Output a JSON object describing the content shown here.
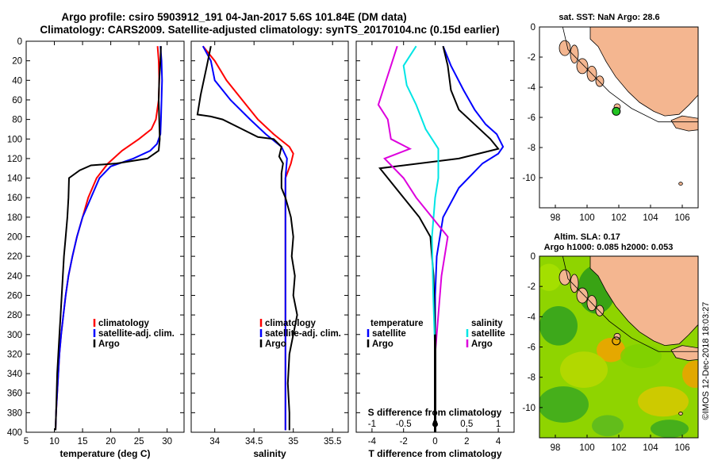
{
  "colors": {
    "climatology": "#ff0000",
    "satellite": "#0000ff",
    "argo": "#000000",
    "sal_satellite": "#00e5e5",
    "sal_argo": "#dd00dd",
    "land": "#f4b690",
    "sea": "#ffffff"
  },
  "header": {
    "line1": "Argo profile: csiro 5903912_191 04-Jan-2017 5.6S 101.84E (DM data)",
    "line2": "Climatology: CARS2009. Satellite-adjusted climatology: synTS_20170104.nc (0.15d earlier)"
  },
  "watermark": "©IMOS 12-Dec-2018 18:03:27",
  "chart_data": [
    {
      "type": "line",
      "id": "temperature",
      "xlabel": "temperature (deg C)",
      "ylabel": "",
      "xlim": [
        5,
        33
      ],
      "ylim": [
        400,
        0
      ],
      "xticks": [
        "5",
        "10",
        "15",
        "20",
        "25",
        "30"
      ],
      "xtick_values": [
        5,
        10,
        15,
        20,
        25,
        30
      ],
      "yticks": [
        "0",
        "20",
        "40",
        "60",
        "80",
        "100",
        "120",
        "140",
        "160",
        "180",
        "200",
        "220",
        "240",
        "260",
        "280",
        "300",
        "320",
        "340",
        "360",
        "380",
        "400"
      ],
      "legend": [
        "climatology",
        "satellite-adj. clim.",
        "Argo"
      ],
      "series": [
        {
          "name": "climatology",
          "color": "#ff0000",
          "points": [
            [
              28.3,
              5
            ],
            [
              28.5,
              20
            ],
            [
              28.6,
              40
            ],
            [
              28.5,
              60
            ],
            [
              28.0,
              80
            ],
            [
              27.2,
              90
            ],
            [
              25.0,
              100
            ],
            [
              22.0,
              112
            ],
            [
              19.5,
              125
            ],
            [
              17.5,
              140
            ],
            [
              16.0,
              160
            ],
            [
              15.0,
              180
            ],
            [
              14.0,
              200
            ],
            [
              13.2,
              220
            ],
            [
              12.5,
              240
            ],
            [
              12.0,
              260
            ],
            [
              11.6,
              280
            ],
            [
              11.2,
              300
            ],
            [
              10.9,
              320
            ],
            [
              10.7,
              340
            ],
            [
              10.5,
              360
            ],
            [
              10.3,
              380
            ],
            [
              10.2,
              398
            ]
          ]
        },
        {
          "name": "satellite-adj. clim.",
          "color": "#0000ff",
          "points": [
            [
              28.8,
              5
            ],
            [
              29.0,
              20
            ],
            [
              29.1,
              40
            ],
            [
              29.0,
              60
            ],
            [
              28.9,
              80
            ],
            [
              28.8,
              95
            ],
            [
              28.2,
              105
            ],
            [
              27.0,
              112
            ],
            [
              24.0,
              120
            ],
            [
              20.0,
              128
            ],
            [
              18.0,
              140
            ],
            [
              16.5,
              160
            ],
            [
              15.0,
              180
            ],
            [
              14.0,
              200
            ],
            [
              13.2,
              220
            ],
            [
              12.5,
              240
            ],
            [
              12.0,
              260
            ],
            [
              11.6,
              280
            ],
            [
              11.2,
              300
            ],
            [
              10.9,
              320
            ],
            [
              10.7,
              340
            ],
            [
              10.5,
              360
            ],
            [
              10.3,
              380
            ],
            [
              10.2,
              398
            ]
          ]
        },
        {
          "name": "Argo",
          "color": "#000000",
          "points": [
            [
              28.9,
              5
            ],
            [
              28.8,
              20
            ],
            [
              28.6,
              40
            ],
            [
              28.5,
              60
            ],
            [
              28.6,
              80
            ],
            [
              28.7,
              100
            ],
            [
              28.5,
              112
            ],
            [
              26.5,
              120
            ],
            [
              21.0,
              125
            ],
            [
              16.5,
              127
            ],
            [
              14.5,
              132
            ],
            [
              12.6,
              140
            ],
            [
              12.5,
              160
            ],
            [
              12.3,
              180
            ],
            [
              12.0,
              200
            ],
            [
              11.7,
              220
            ],
            [
              11.5,
              240
            ],
            [
              11.3,
              260
            ],
            [
              11.1,
              280
            ],
            [
              10.9,
              300
            ],
            [
              10.7,
              320
            ],
            [
              10.5,
              340
            ],
            [
              10.4,
              360
            ],
            [
              10.3,
              380
            ],
            [
              10.2,
              398
            ]
          ]
        }
      ]
    },
    {
      "type": "line",
      "id": "salinity",
      "xlabel": "salinity",
      "xlim": [
        33.7,
        35.7
      ],
      "ylim": [
        400,
        0
      ],
      "xticks": [
        "34",
        "34.5",
        "35",
        "35.5"
      ],
      "xtick_values": [
        34,
        34.5,
        35,
        35.5
      ],
      "legend": [
        "climatology",
        "satellite-adj. clim.",
        "Argo"
      ],
      "series": [
        {
          "name": "climatology",
          "color": "#ff0000",
          "points": [
            [
              33.85,
              5
            ],
            [
              34.0,
              20
            ],
            [
              34.15,
              40
            ],
            [
              34.35,
              60
            ],
            [
              34.55,
              80
            ],
            [
              34.75,
              95
            ],
            [
              34.95,
              108
            ],
            [
              35.0,
              115
            ],
            [
              34.97,
              125
            ],
            [
              34.9,
              140
            ],
            [
              34.9,
              160
            ],
            [
              34.9,
              200
            ],
            [
              34.9,
              250
            ],
            [
              34.9,
              300
            ],
            [
              34.9,
              350
            ],
            [
              34.9,
              398
            ]
          ]
        },
        {
          "name": "satellite-adj. clim.",
          "color": "#0000ff",
          "points": [
            [
              33.85,
              5
            ],
            [
              33.95,
              20
            ],
            [
              34.0,
              40
            ],
            [
              34.2,
              60
            ],
            [
              34.45,
              80
            ],
            [
              34.65,
              95
            ],
            [
              34.85,
              108
            ],
            [
              34.92,
              120
            ],
            [
              34.9,
              140
            ],
            [
              34.9,
              160
            ],
            [
              34.9,
              200
            ],
            [
              34.9,
              250
            ],
            [
              34.9,
              300
            ],
            [
              34.9,
              350
            ],
            [
              34.9,
              398
            ]
          ]
        },
        {
          "name": "Argo",
          "color": "#000000",
          "points": [
            [
              33.95,
              5
            ],
            [
              33.9,
              25
            ],
            [
              33.82,
              55
            ],
            [
              33.78,
              75
            ],
            [
              33.95,
              77
            ],
            [
              34.1,
              80
            ],
            [
              34.35,
              90
            ],
            [
              34.55,
              98
            ],
            [
              34.75,
              100
            ],
            [
              34.85,
              108
            ],
            [
              34.82,
              118
            ],
            [
              34.87,
              125
            ],
            [
              34.85,
              135
            ],
            [
              34.85,
              150
            ],
            [
              34.9,
              160
            ],
            [
              34.97,
              180
            ],
            [
              35.0,
              200
            ],
            [
              34.98,
              220
            ],
            [
              35.02,
              240
            ],
            [
              35.0,
              260
            ],
            [
              35.05,
              280
            ],
            [
              35.0,
              300
            ],
            [
              34.95,
              320
            ],
            [
              34.93,
              350
            ],
            [
              34.95,
              380
            ],
            [
              34.95,
              398
            ]
          ]
        }
      ]
    },
    {
      "type": "line",
      "id": "difference",
      "xlabel": "T difference from climatology",
      "xlabel_top": "S difference from climatology",
      "xlim": [
        -5,
        5
      ],
      "ylim": [
        400,
        0
      ],
      "xticks": [
        "-4",
        "-2",
        "0",
        "2",
        "4"
      ],
      "xtick_values": [
        -4,
        -2,
        0,
        2,
        4
      ],
      "sticks": [
        "-1",
        "-0.5",
        "0",
        "0.5",
        "1"
      ],
      "stick_values": [
        -1,
        -0.5,
        0,
        0.5,
        1
      ],
      "legend_temperature": {
        "title": "temperature",
        "items": [
          "satellite",
          "Argo"
        ]
      },
      "legend_salinity": {
        "title": "salinity",
        "items": [
          "satellite",
          "Argo"
        ]
      },
      "series": [
        {
          "name": "T satellite",
          "color": "#0000ff",
          "points": [
            [
              0.5,
              5
            ],
            [
              1.0,
              25
            ],
            [
              1.8,
              50
            ],
            [
              2.5,
              70
            ],
            [
              3.2,
              85
            ],
            [
              3.9,
              95
            ],
            [
              4.3,
              108
            ],
            [
              4.0,
              115
            ],
            [
              3.0,
              125
            ],
            [
              1.5,
              150
            ],
            [
              0.5,
              180
            ],
            [
              0.1,
              220
            ],
            [
              0,
              260
            ],
            [
              0,
              300
            ],
            [
              0,
              350
            ],
            [
              0,
              398
            ]
          ]
        },
        {
          "name": "T Argo",
          "color": "#000000",
          "points": [
            [
              0.5,
              5
            ],
            [
              0.8,
              25
            ],
            [
              1.0,
              50
            ],
            [
              1.5,
              70
            ],
            [
              2.5,
              85
            ],
            [
              3.5,
              100
            ],
            [
              4.0,
              110
            ],
            [
              1.5,
              120
            ],
            [
              -3.5,
              130
            ],
            [
              -3.0,
              140
            ],
            [
              -2.0,
              160
            ],
            [
              -1.0,
              180
            ],
            [
              -0.3,
              200
            ],
            [
              -0.1,
              240
            ],
            [
              0,
              300
            ],
            [
              0,
              350
            ],
            [
              0,
              398
            ]
          ]
        },
        {
          "name": "S satellite",
          "color": "#00e5e5",
          "points": [
            [
              -0.3,
              5
            ],
            [
              -0.5,
              25
            ],
            [
              -0.45,
              45
            ],
            [
              -0.3,
              65
            ],
            [
              -0.15,
              90
            ],
            [
              0.05,
              110
            ],
            [
              0.05,
              140
            ],
            [
              0.0,
              160
            ],
            [
              -0.05,
              200
            ],
            [
              -0.03,
              260
            ],
            [
              0,
              320
            ],
            [
              0,
              398
            ]
          ]
        },
        {
          "name": "S Argo",
          "color": "#dd00dd",
          "points": [
            [
              -0.6,
              5
            ],
            [
              -0.7,
              25
            ],
            [
              -0.8,
              45
            ],
            [
              -0.9,
              65
            ],
            [
              -0.75,
              80
            ],
            [
              -0.7,
              100
            ],
            [
              -0.4,
              110
            ],
            [
              -0.8,
              120
            ],
            [
              -0.5,
              140
            ],
            [
              -0.3,
              160
            ],
            [
              0.2,
              200
            ],
            [
              0.1,
              240
            ],
            [
              0.05,
              280
            ],
            [
              0,
              320
            ],
            [
              0,
              398
            ]
          ]
        }
      ]
    },
    {
      "type": "map",
      "id": "sst_map",
      "title": "sat. SST: NaN Argo: 28.6",
      "xlim": [
        97,
        107
      ],
      "ylim": [
        -12,
        0
      ],
      "xticks": [
        "98",
        "100",
        "102",
        "104",
        "106"
      ],
      "xtick_values": [
        98,
        100,
        102,
        104,
        106
      ],
      "yticks": [
        "0",
        "-2",
        "-4",
        "-6",
        "-8",
        "-10"
      ],
      "ytick_values": [
        0,
        -2,
        -4,
        -6,
        -8,
        -10
      ],
      "argo_position": [
        101.84,
        -5.6
      ]
    },
    {
      "type": "heatmap",
      "id": "sla_map",
      "title_line1": "Altim. SLA: 0.17",
      "title_line2": "Argo h1000: 0.085 h2000: 0.053",
      "xlim": [
        97,
        107
      ],
      "ylim": [
        -12,
        0
      ],
      "xticks": [
        "98",
        "100",
        "102",
        "104",
        "106"
      ],
      "xtick_values": [
        98,
        100,
        102,
        104,
        106
      ],
      "yticks": [
        "0",
        "-2",
        "-4",
        "-6",
        "-8",
        "-10"
      ],
      "ytick_values": [
        0,
        -2,
        -4,
        -6,
        -8,
        -10
      ],
      "argo_position": [
        101.84,
        -5.6
      ]
    }
  ]
}
